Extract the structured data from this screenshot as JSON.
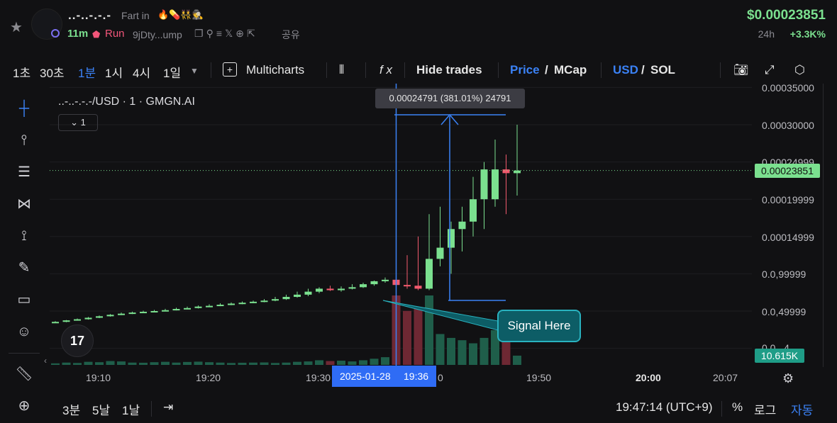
{
  "header": {
    "token_name": "..-..-.-.-",
    "subtitle": "Fart in",
    "emojis": "🔥💊👯🕵",
    "age": "11m",
    "run_label": "Run",
    "address": "9jDty...ump",
    "share_label": "공유",
    "price": "$0.00023851",
    "change_label": "24h",
    "change_value": "+3.3K%"
  },
  "toolbar": {
    "timeframes": [
      "1초",
      "30초",
      "1분",
      "1시",
      "4시",
      "1일"
    ],
    "active_timeframe": "1분",
    "multicharts_label": "Multicharts",
    "fx_label": "f x",
    "hide_trades_label": "Hide trades",
    "price_label": "Price",
    "slash": "/",
    "mcap_label": "MCap",
    "usd_label": "USD",
    "sol_label": "SOL"
  },
  "chart": {
    "legend": "..-..-.-.-/USD · 1 · GMGN.AI",
    "collapse_label": "1",
    "last_price_badge": "0.00023851",
    "volume_badge": "10.615K",
    "measure_tooltip": "0.00024791 (381.01%) 24791",
    "signal_label": "Signal Here",
    "crosshair_date": "2025-01-28",
    "crosshair_time": "19:36",
    "tv_logo": "17",
    "y_ticks": [
      "0.00035000",
      "0.00030000",
      "0.00024999",
      "0.00019999",
      "0.00014999",
      "0.0,99999",
      "0.0,49999",
      "0.0...4"
    ],
    "x_ticks": [
      "19:10",
      "19:20",
      "19:30",
      "0",
      "19:50",
      "20:00",
      "20:07"
    ]
  },
  "chart_data": {
    "type": "candlestick",
    "x": [
      "19:05",
      "19:06",
      "19:07",
      "19:08",
      "19:09",
      "19:10",
      "19:11",
      "19:12",
      "19:13",
      "19:14",
      "19:15",
      "19:16",
      "19:17",
      "19:18",
      "19:19",
      "19:20",
      "19:21",
      "19:22",
      "19:23",
      "19:24",
      "19:25",
      "19:26",
      "19:27",
      "19:28",
      "19:29",
      "19:30",
      "19:31",
      "19:32",
      "19:33",
      "19:34",
      "19:35",
      "19:36",
      "19:37",
      "19:38",
      "19:39",
      "19:40",
      "19:41",
      "19:42",
      "19:43",
      "19:44",
      "19:45",
      "19:46",
      "19:47"
    ],
    "open": [
      3.5e-05,
      3.55e-05,
      3.75e-05,
      3.9e-05,
      4.1e-05,
      4.3e-05,
      4.5e-05,
      4.65e-05,
      4.8e-05,
      4.9e-05,
      5e-05,
      5.12e-05,
      5.28e-05,
      5.4e-05,
      5.6e-05,
      5.7e-05,
      5.85e-05,
      6e-05,
      6.12e-05,
      6.25e-05,
      6.4e-05,
      6.6e-05,
      6.9e-05,
      7.2e-05,
      7.6e-05,
      8e-05,
      7.8e-05,
      8e-05,
      8.2e-05,
      8.6e-05,
      9e-05,
      9.2e-05,
      8.5e-05,
      8.4e-05,
      8e-05,
      0.00012,
      0.000135,
      0.00016,
      0.00017,
      0.0002,
      0.0002,
      0.00024,
      0.000235
    ],
    "high": [
      3.65e-05,
      3.8e-05,
      4e-05,
      4.2e-05,
      4.4e-05,
      4.6e-05,
      4.8e-05,
      4.92e-05,
      5.05e-05,
      5.15e-05,
      5.3e-05,
      5.45e-05,
      5.6e-05,
      5.75e-05,
      5.9e-05,
      6.05e-05,
      6.15e-05,
      6.28e-05,
      6.4e-05,
      6.6e-05,
      6.9e-05,
      7.2e-05,
      7.6e-05,
      8e-05,
      8.2e-05,
      8.4e-05,
      8.3e-05,
      8.6e-05,
      8.8e-05,
      9.1e-05,
      9.5e-05,
      0.00012,
      0.000125,
      0.00015,
      0.00018,
      0.00019,
      0.00017,
      0.00019,
      0.00023,
      0.00025,
      0.00028,
      0.00026,
      0.0003
    ],
    "low": [
      3.45e-05,
      3.5e-05,
      3.7e-05,
      3.85e-05,
      4.05e-05,
      4.25e-05,
      4.45e-05,
      4.6e-05,
      4.75e-05,
      4.85e-05,
      4.95e-05,
      5.08e-05,
      5.22e-05,
      5.35e-05,
      5.52e-05,
      5.65e-05,
      5.78e-05,
      5.92e-05,
      6.05e-05,
      6.18e-05,
      6.32e-05,
      6.5e-05,
      6.8e-05,
      7e-05,
      7.4e-05,
      7.7e-05,
      7.6e-05,
      7.9e-05,
      8.1e-05,
      8.4e-05,
      8.8e-05,
      8.3e-05,
      8e-05,
      7.8e-05,
      7.8e-05,
      0.00011,
      0.0001,
      0.00013,
      0.00015,
      0.00016,
      0.00019,
      0.00018,
      0.000205
    ],
    "close": [
      3.55e-05,
      3.75e-05,
      3.9e-05,
      4.1e-05,
      4.3e-05,
      4.5e-05,
      4.65e-05,
      4.8e-05,
      4.9e-05,
      5e-05,
      5.12e-05,
      5.28e-05,
      5.4e-05,
      5.6e-05,
      5.7e-05,
      5.85e-05,
      6e-05,
      6.12e-05,
      6.25e-05,
      6.4e-05,
      6.6e-05,
      6.9e-05,
      7.2e-05,
      7.6e-05,
      8e-05,
      7.8e-05,
      8e-05,
      8.2e-05,
      8.6e-05,
      9e-05,
      9.2e-05,
      8.5e-05,
      8.4e-05,
      8e-05,
      0.00012,
      0.000135,
      0.00016,
      0.00017,
      0.0002,
      0.00024,
      0.00024,
      0.000235,
      0.0002385
    ],
    "volume": [
      200,
      300,
      250,
      400,
      350,
      500,
      450,
      300,
      280,
      350,
      400,
      300,
      380,
      420,
      350,
      300,
      250,
      280,
      300,
      320,
      250,
      300,
      400,
      450,
      600,
      500,
      550,
      450,
      600,
      800,
      1000,
      9000,
      7000,
      7500,
      9000,
      4000,
      3500,
      3200,
      2800,
      3500,
      4500,
      5000,
      1200
    ],
    "measure": {
      "from": 0.0,
      "to": 0.00024791,
      "pct": "381.01%",
      "ticks": 24791
    },
    "y_unit": "USD"
  }
}
